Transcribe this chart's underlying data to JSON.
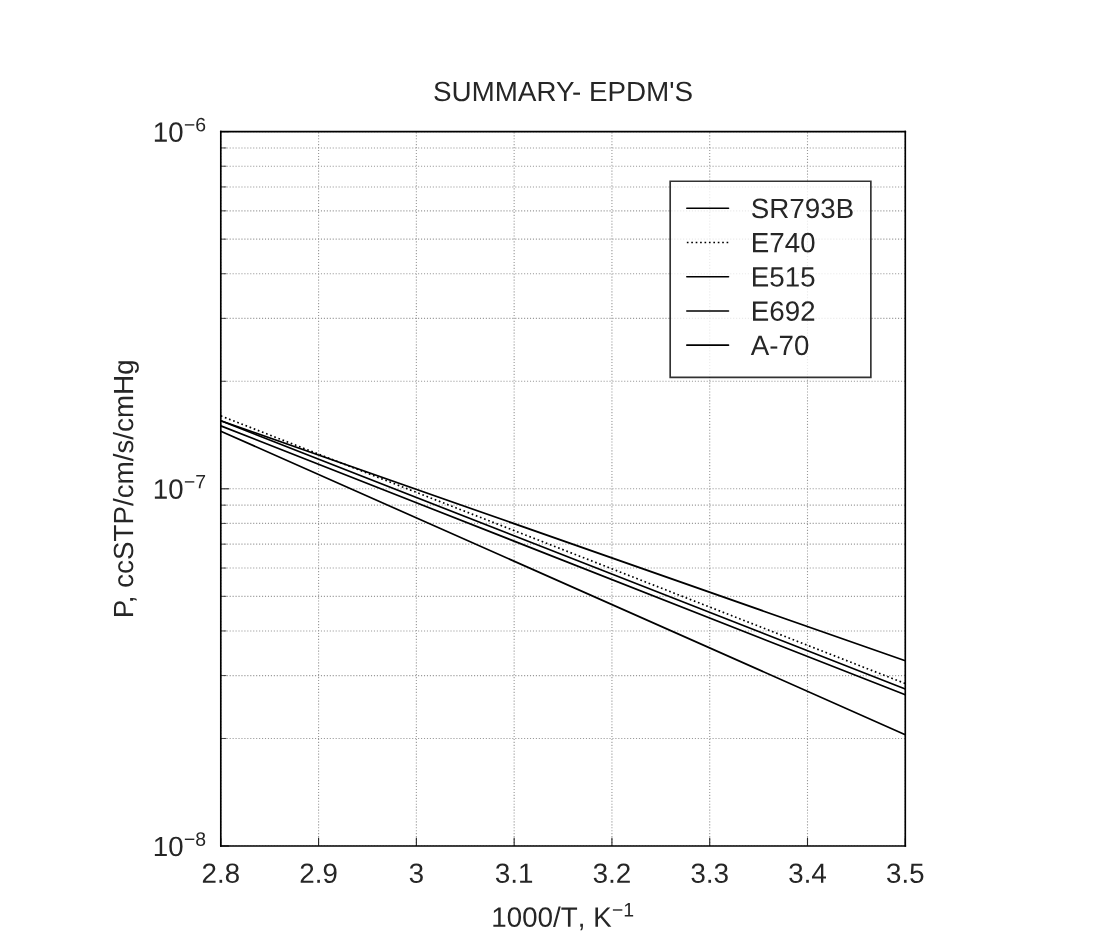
{
  "chart_data": {
    "type": "line",
    "title": "SUMMARY- EPDM'S",
    "xlabel": "1000/T, K$^{−1}$",
    "ylabel": "P, ccSTP/cm/s/cmHg",
    "x": [
      2.8,
      3.5
    ],
    "series": [
      {
        "name": "SR793B",
        "color": "#000000",
        "values": [
          1.55e-07,
          3.3e-08
        ],
        "line_style": "solid"
      },
      {
        "name": "E740",
        "color": "#000000",
        "values": [
          1.6e-07,
          2.85e-08
        ],
        "line_style": "dotted"
      },
      {
        "name": "E515",
        "color": "#000000",
        "values": [
          1.55e-07,
          2.75e-08
        ],
        "line_style": "solid"
      },
      {
        "name": "E692",
        "color": "#000000",
        "values": [
          1.5e-07,
          2.65e-08
        ],
        "line_style": "solid"
      },
      {
        "name": "A-70",
        "color": "#000000",
        "values": [
          1.45e-07,
          2.05e-08
        ],
        "line_style": "solid"
      }
    ],
    "log": "y",
    "xlim": [
      2.8,
      3.5
    ],
    "xticks": [
      2.8,
      2.9,
      3,
      3.1,
      3.2,
      3.3,
      3.4,
      3.5
    ],
    "ylim": [
      1e-08,
      1e-06
    ],
    "yticks": [
      {
        "value": 1e-08,
        "label": "10$^{−8}$"
      },
      {
        "value": 1e-07,
        "label": "10$^{−7}$"
      },
      {
        "value": 1e-06,
        "label": "10$^{−6}$"
      }
    ],
    "grid": true,
    "legend": "top right"
  }
}
